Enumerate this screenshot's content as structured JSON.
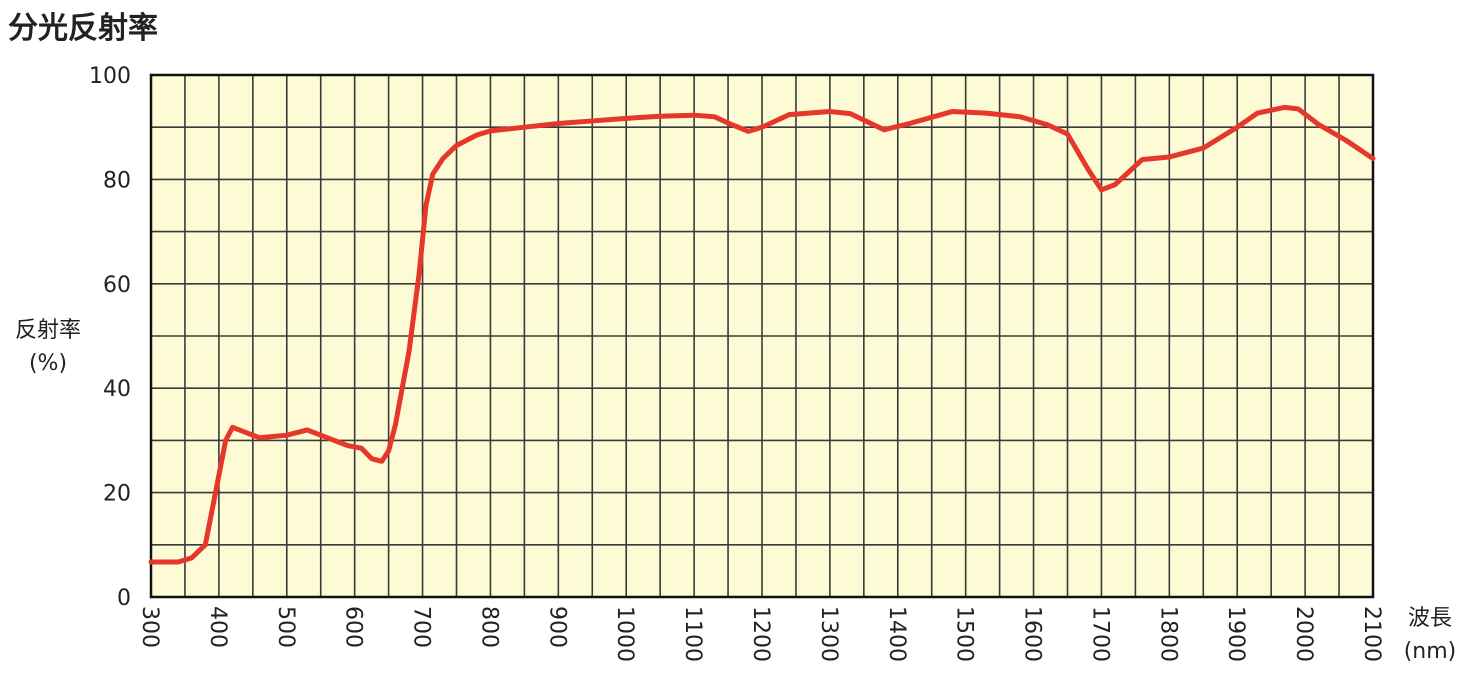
{
  "chart_data": {
    "type": "line",
    "title": "分光反射率",
    "y_label": [
      "反射率",
      "(%)"
    ],
    "x_label": [
      "波長",
      "(nm)"
    ],
    "x": [
      300,
      320,
      340,
      360,
      380,
      395,
      410,
      420,
      440,
      460,
      500,
      530,
      560,
      590,
      610,
      625,
      640,
      650,
      660,
      680,
      695,
      705,
      715,
      730,
      750,
      780,
      800,
      850,
      900,
      950,
      1000,
      1050,
      1100,
      1130,
      1150,
      1180,
      1200,
      1240,
      1300,
      1330,
      1380,
      1420,
      1480,
      1530,
      1580,
      1620,
      1650,
      1680,
      1700,
      1720,
      1760,
      1800,
      1850,
      1900,
      1930,
      1970,
      1990,
      2020,
      2060,
      2100
    ],
    "series": [
      {
        "name": "反射率",
        "color": "#e5372a",
        "values": [
          6.7,
          6.7,
          6.7,
          7.5,
          10,
          20,
          30,
          32.5,
          31.5,
          30.5,
          31,
          32,
          30.5,
          29,
          28.5,
          26.5,
          26,
          28,
          33,
          47,
          62,
          75,
          81,
          84,
          86.5,
          88.5,
          89.3,
          90,
          90.7,
          91.2,
          91.7,
          92.1,
          92.3,
          92,
          90.8,
          89.2,
          90,
          92.4,
          93,
          92.6,
          89.5,
          90.8,
          93,
          92.7,
          92,
          90.5,
          88.7,
          82,
          78,
          79,
          83.8,
          84.3,
          86,
          90,
          92.7,
          93.8,
          93.5,
          90.5,
          87.5,
          84
        ]
      }
    ],
    "xlim": [
      300,
      2100
    ],
    "xticks": [
      300,
      400,
      500,
      600,
      700,
      800,
      900,
      1000,
      1100,
      1200,
      1300,
      1400,
      1500,
      1600,
      1700,
      1800,
      1900,
      2000,
      2100
    ],
    "ylim": [
      0,
      100
    ],
    "yticks": [
      0,
      20,
      40,
      60,
      80,
      100
    ],
    "grid": true
  }
}
